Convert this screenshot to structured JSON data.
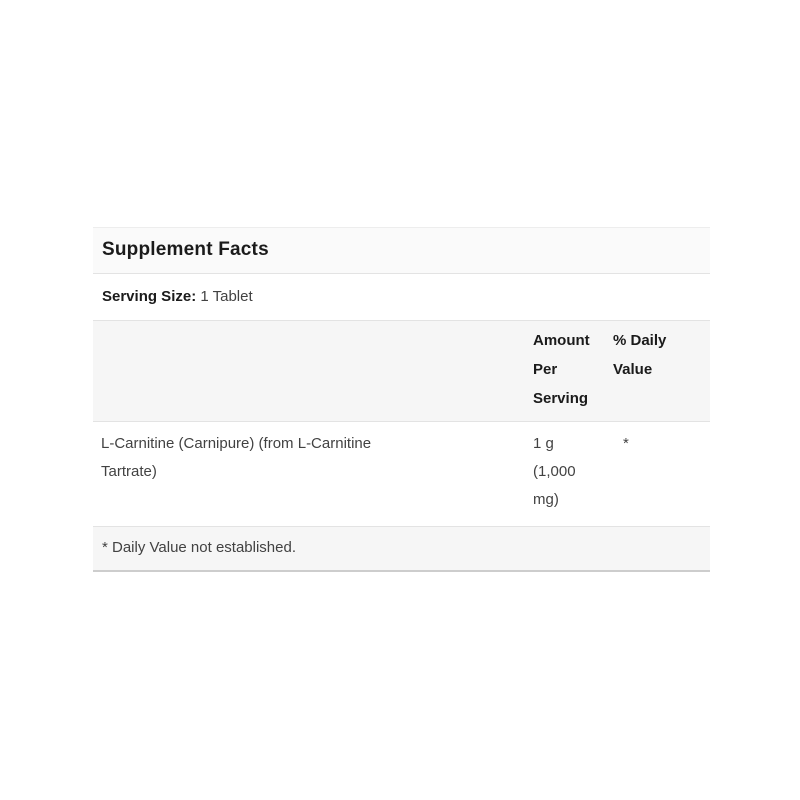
{
  "supplement_facts": {
    "title": "Supplement Facts",
    "serving": {
      "label": "Serving Size:",
      "value": "1 Tablet"
    },
    "columns": {
      "ingredient": "",
      "amount": "Amount\nPer\nServing",
      "daily_value": "% Daily\nValue"
    },
    "rows": [
      {
        "ingredient": "L-Carnitine (Carnipure) (from L-Carnitine\nTartrate)",
        "amount": "1 g\n(1,000\nmg)",
        "daily_value": "*"
      }
    ],
    "footnote": "* Daily Value not established.",
    "colors": {
      "title_bg": "#fafafa",
      "band_bg": "#f6f6f6",
      "divider": "#e3e3e3",
      "bottom_border": "#cdcdcd",
      "heading_text": "#1b1b1b",
      "body_text": "#424242"
    }
  }
}
